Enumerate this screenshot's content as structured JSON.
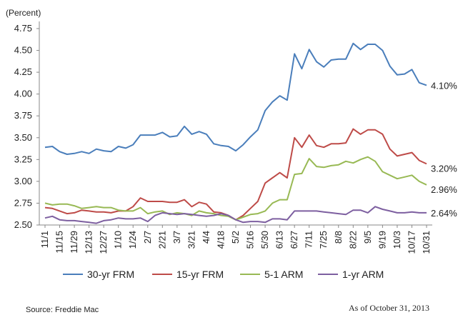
{
  "chart_data": {
    "type": "line",
    "ylabel": "(Percent)",
    "ylim": [
      2.5,
      4.75
    ],
    "yticks": [
      "2.50",
      "2.75",
      "3.00",
      "3.25",
      "3.50",
      "3.75",
      "4.00",
      "4.25",
      "4.50",
      "4.75"
    ],
    "xtick_labels": [
      "11/1",
      "11/15",
      "11/29",
      "12/13",
      "12/27",
      "1/10",
      "1/24",
      "2/7",
      "2/21",
      "3/7",
      "3/21",
      "4/4",
      "4/18",
      "5/2",
      "5/16",
      "5/30",
      "6/13",
      "6/27",
      "7/11",
      "7/25",
      "8/8",
      "8/22",
      "9/5",
      "9/19",
      "10/3",
      "10/17",
      "10/31"
    ],
    "grid": false,
    "legend_position": "bottom",
    "series": [
      {
        "name": "30-yr FRM",
        "color": "#4a7ebb",
        "end_label": "4.10%",
        "values": [
          3.39,
          3.4,
          3.34,
          3.31,
          3.32,
          3.34,
          3.32,
          3.37,
          3.35,
          3.34,
          3.4,
          3.38,
          3.42,
          3.53,
          3.53,
          3.53,
          3.56,
          3.51,
          3.52,
          3.63,
          3.54,
          3.57,
          3.54,
          3.43,
          3.41,
          3.4,
          3.35,
          3.42,
          3.51,
          3.59,
          3.81,
          3.91,
          3.98,
          3.93,
          4.46,
          4.29,
          4.51,
          4.37,
          4.31,
          4.39,
          4.4,
          4.4,
          4.58,
          4.51,
          4.57,
          4.57,
          4.5,
          4.32,
          4.22,
          4.23,
          4.28,
          4.13,
          4.1
        ]
      },
      {
        "name": "15-yr FRM",
        "color": "#be4b48",
        "end_label": "3.20%",
        "values": [
          2.7,
          2.69,
          2.66,
          2.63,
          2.64,
          2.67,
          2.66,
          2.65,
          2.65,
          2.64,
          2.66,
          2.66,
          2.71,
          2.81,
          2.77,
          2.77,
          2.77,
          2.76,
          2.76,
          2.79,
          2.71,
          2.76,
          2.74,
          2.65,
          2.64,
          2.61,
          2.56,
          2.61,
          2.69,
          2.77,
          2.98,
          3.04,
          3.1,
          3.04,
          3.5,
          3.39,
          3.53,
          3.41,
          3.39,
          3.43,
          3.43,
          3.44,
          3.6,
          3.54,
          3.59,
          3.59,
          3.54,
          3.37,
          3.29,
          3.31,
          3.33,
          3.24,
          3.2
        ]
      },
      {
        "name": "5-1 ARM",
        "color": "#98b954",
        "end_label": "2.96%",
        "values": [
          2.75,
          2.73,
          2.74,
          2.74,
          2.72,
          2.69,
          2.7,
          2.71,
          2.7,
          2.7,
          2.67,
          2.66,
          2.66,
          2.7,
          2.63,
          2.65,
          2.66,
          2.62,
          2.64,
          2.63,
          2.61,
          2.66,
          2.64,
          2.63,
          2.61,
          2.6,
          2.56,
          2.59,
          2.62,
          2.63,
          2.66,
          2.75,
          2.79,
          2.79,
          3.08,
          3.09,
          3.26,
          3.17,
          3.16,
          3.18,
          3.19,
          3.23,
          3.21,
          3.25,
          3.28,
          3.23,
          3.11,
          3.07,
          3.03,
          3.05,
          3.07,
          3.0,
          2.96
        ]
      },
      {
        "name": "1-yr ARM",
        "color": "#7d5fa0",
        "end_label": "2.64%",
        "values": [
          2.58,
          2.6,
          2.56,
          2.55,
          2.55,
          2.54,
          2.53,
          2.52,
          2.55,
          2.56,
          2.58,
          2.57,
          2.57,
          2.58,
          2.54,
          2.61,
          2.64,
          2.63,
          2.62,
          2.63,
          2.62,
          2.61,
          2.6,
          2.61,
          2.63,
          2.61,
          2.56,
          2.53,
          2.54,
          2.54,
          2.53,
          2.57,
          2.57,
          2.56,
          2.66,
          2.66,
          2.66,
          2.66,
          2.65,
          2.64,
          2.63,
          2.62,
          2.67,
          2.67,
          2.64,
          2.71,
          2.68,
          2.66,
          2.64,
          2.64,
          2.65,
          2.64,
          2.64
        ]
      }
    ]
  },
  "footer": {
    "source": "Source: Freddie Mac",
    "as_of": "As of October 31, 2013"
  }
}
